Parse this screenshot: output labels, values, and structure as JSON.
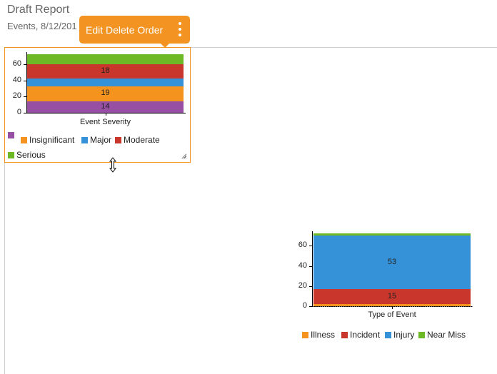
{
  "header": {
    "title": "Draft Report",
    "subtitle": "Events, 8/12/201"
  },
  "tooltip": {
    "label": "Edit Delete Order",
    "menu_icon": "kebab-vertical-icon",
    "color": "#f39322"
  },
  "colors": {
    "purple": "#974fa4",
    "orange": "#f5931f",
    "blue": "#3592d9",
    "red": "#c9372c",
    "green": "#6db825",
    "selection_border": "#f39322"
  },
  "chart_data": [
    {
      "type": "bar",
      "stacked": true,
      "title": "",
      "xlabel": "Event Severity",
      "ylabel": "",
      "categories": [
        "Event Severity"
      ],
      "yticks": [
        "0",
        "20",
        "40",
        "60"
      ],
      "ylim": [
        0,
        72
      ],
      "series": [
        {
          "name": "",
          "color": "#974fa4",
          "values": [
            14
          ],
          "label": "14"
        },
        {
          "name": "Insignificant",
          "color": "#f5931f",
          "values": [
            19
          ],
          "label": "19"
        },
        {
          "name": "Major",
          "color": "#3592d9",
          "values": [
            9
          ],
          "label": ""
        },
        {
          "name": "Moderate",
          "color": "#c9372c",
          "values": [
            18
          ],
          "label": "18"
        },
        {
          "name": "Serious",
          "color": "#6db825",
          "values": [
            12
          ],
          "label": ""
        }
      ],
      "legend_position": "bottom"
    },
    {
      "type": "bar",
      "stacked": true,
      "title": "",
      "xlabel": "Type of Event",
      "ylabel": "",
      "categories": [
        "Type of Event"
      ],
      "yticks": [
        "0",
        "20",
        "40",
        "60"
      ],
      "ylim": [
        0,
        72
      ],
      "series": [
        {
          "name": "Illness",
          "color": "#f5931f",
          "values": [
            2
          ],
          "label": ""
        },
        {
          "name": "Incident",
          "color": "#c9372c",
          "values": [
            15
          ],
          "label": "15"
        },
        {
          "name": "Injury",
          "color": "#3592d9",
          "values": [
            53
          ],
          "label": "53"
        },
        {
          "name": "Near Miss",
          "color": "#6db825",
          "values": [
            2
          ],
          "label": ""
        }
      ],
      "legend_position": "bottom"
    }
  ]
}
